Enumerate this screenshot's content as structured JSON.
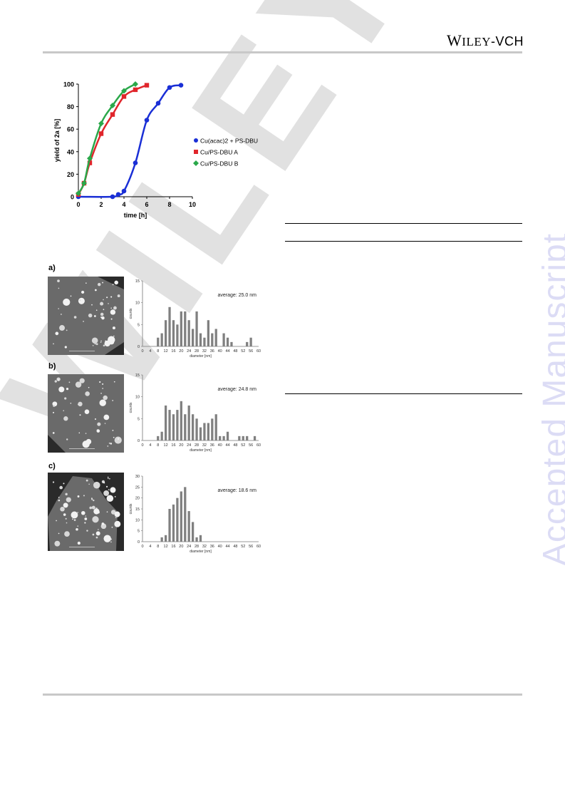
{
  "header": {
    "brand": "W",
    "brand_rest": "ILEY",
    "brand_suffix": "-VCH"
  },
  "watermark": {
    "side": "Accepted Manuscript",
    "diagonal": "WILEY-VCH"
  },
  "kinetics_chart": {
    "ylabel": "yield of 2a [%]",
    "xlabel": "time [h]",
    "xlim": [
      0,
      10
    ],
    "ylim": [
      0,
      100
    ],
    "xticks": [
      "0",
      "2",
      "4",
      "6",
      "8",
      "10"
    ],
    "yticks": [
      "0",
      "20",
      "40",
      "60",
      "80",
      "100"
    ],
    "legend": [
      "Cu(acac)2 + PS-DBU",
      "Cu/PS-DBU A",
      "Cu/PS-DBU B"
    ]
  },
  "panels": [
    {
      "label": "a)",
      "average": "average: 25.0 nm"
    },
    {
      "label": "b)",
      "average": "average: 24.8 nm"
    },
    {
      "label": "c)",
      "average": "average: 18.6 nm"
    }
  ],
  "histogram_axes": {
    "ylabel": "counts",
    "xlabel": "diameter [nm]"
  },
  "chart_data": [
    {
      "type": "line",
      "xlabel": "time [h]",
      "ylabel": "yield of 2a [%]",
      "xlim": [
        0,
        10
      ],
      "ylim": [
        0,
        100
      ],
      "legend_placement": "right",
      "series": [
        {
          "name": "Cu(acac)2 + PS-DBU",
          "color": "#1a2fd6",
          "marker": "circle",
          "x": [
            0,
            3,
            3.5,
            4,
            5,
            6,
            7,
            8,
            9
          ],
          "y": [
            0,
            0,
            2,
            5,
            30,
            68,
            83,
            97,
            99
          ]
        },
        {
          "name": "Cu/PS-DBU A",
          "color": "#e0252b",
          "marker": "square",
          "x": [
            0,
            0.5,
            1,
            2,
            3,
            4,
            5,
            6
          ],
          "y": [
            2,
            12,
            30,
            56,
            73,
            89,
            95,
            99
          ]
        },
        {
          "name": "Cu/PS-DBU B",
          "color": "#2aa84a",
          "marker": "diamond",
          "x": [
            0,
            0.5,
            1,
            2,
            3,
            4,
            5
          ],
          "y": [
            3,
            12,
            34,
            65,
            81,
            94,
            100
          ]
        }
      ]
    },
    {
      "type": "bar",
      "xlabel": "diameter [nm]",
      "ylabel": "counts",
      "ylim": [
        0,
        15
      ],
      "xlim": [
        0,
        60
      ],
      "yticks": [
        "0",
        "5",
        "10",
        "15"
      ],
      "xticks": [
        "0",
        "4",
        "8",
        "12",
        "16",
        "20",
        "24",
        "28",
        "32",
        "36",
        "40",
        "44",
        "48",
        "52",
        "56",
        "60"
      ],
      "x": [
        6,
        8,
        10,
        12,
        14,
        16,
        18,
        20,
        22,
        24,
        26,
        28,
        30,
        32,
        34,
        36,
        38,
        40,
        42,
        44,
        46,
        48,
        50,
        52,
        54,
        56,
        58
      ],
      "values": [
        0,
        2,
        3,
        6,
        9,
        6,
        5,
        8,
        8,
        6,
        4,
        8,
        3,
        2,
        6,
        3,
        4,
        0,
        3,
        2,
        1,
        0,
        0,
        0,
        1,
        2,
        0
      ]
    },
    {
      "type": "bar",
      "xlabel": "diameter [nm]",
      "ylabel": "counts",
      "ylim": [
        0,
        15
      ],
      "xlim": [
        0,
        60
      ],
      "yticks": [
        "0",
        "5",
        "10",
        "15"
      ],
      "xticks": [
        "0",
        "4",
        "8",
        "12",
        "16",
        "20",
        "24",
        "28",
        "32",
        "36",
        "40",
        "44",
        "48",
        "52",
        "56",
        "60"
      ],
      "x": [
        6,
        8,
        10,
        12,
        14,
        16,
        18,
        20,
        22,
        24,
        26,
        28,
        30,
        32,
        34,
        36,
        38,
        40,
        42,
        44,
        46,
        48,
        50,
        52,
        54,
        56,
        58
      ],
      "values": [
        0,
        1,
        2,
        8,
        7,
        6,
        7,
        9,
        6,
        8,
        6,
        5,
        3,
        4,
        4,
        5,
        6,
        1,
        1,
        2,
        0,
        0,
        1,
        1,
        1,
        0,
        1
      ]
    },
    {
      "type": "bar",
      "xlabel": "diameter [nm]",
      "ylabel": "counts",
      "ylim": [
        0,
        30
      ],
      "xlim": [
        0,
        60
      ],
      "yticks": [
        "0",
        "5",
        "10",
        "15",
        "20",
        "25",
        "30"
      ],
      "xticks": [
        "0",
        "4",
        "8",
        "12",
        "16",
        "20",
        "24",
        "28",
        "32",
        "36",
        "40",
        "44",
        "48",
        "52",
        "56",
        "60"
      ],
      "x": [
        6,
        8,
        10,
        12,
        14,
        16,
        18,
        20,
        22,
        24,
        26,
        28,
        30
      ],
      "values": [
        0,
        0,
        2,
        3,
        15,
        17,
        20,
        23,
        25,
        14,
        9,
        2,
        3
      ]
    }
  ]
}
